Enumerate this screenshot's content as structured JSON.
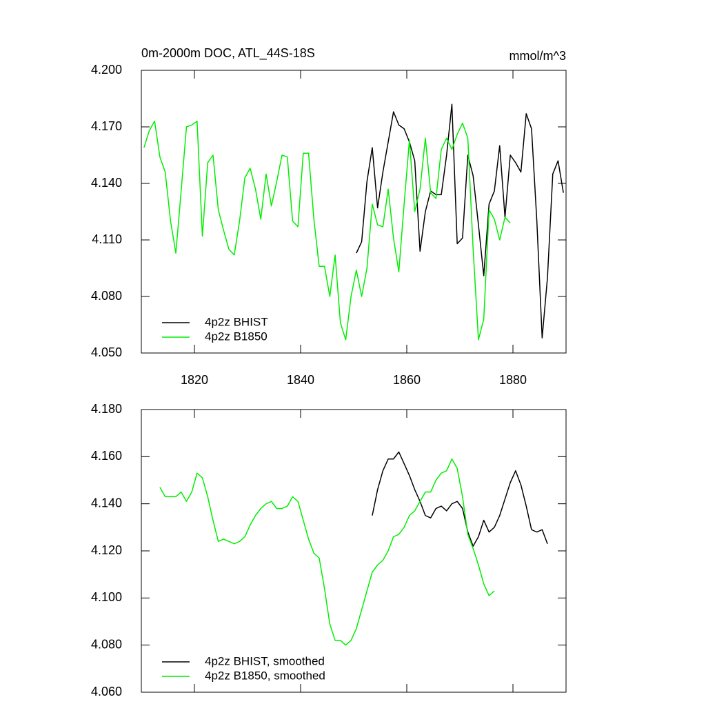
{
  "chart_data": [
    {
      "type": "line",
      "title": "0m-2000m DOC, ATL_44S-18S",
      "units": "mmol/m^3",
      "xlim": [
        1810,
        1890
      ],
      "xticks": [
        1820,
        1840,
        1860,
        1880
      ],
      "xtick_labels": true,
      "ylim": [
        4.05,
        4.2
      ],
      "yticks": [
        {
          "value": 4.05,
          "label": "4.050"
        },
        {
          "value": 4.08,
          "label": "4.080"
        },
        {
          "value": 4.11,
          "label": "4.110"
        },
        {
          "value": 4.14,
          "label": "4.140"
        },
        {
          "value": 4.17,
          "label": "4.170"
        },
        {
          "value": 4.2,
          "label": "4.200"
        }
      ],
      "legend": "lower left",
      "series": [
        {
          "name": "4p2z BHIST",
          "color": "#000000",
          "x": [
            1850.5,
            1851.5,
            1852.5,
            1853.5,
            1854.5,
            1855.5,
            1856.5,
            1857.5,
            1858.5,
            1859.5,
            1860.5,
            1861.5,
            1862.5,
            1863.5,
            1864.5,
            1865.5,
            1866.5,
            1867.5,
            1868.5,
            1869.5,
            1870.5,
            1871.5,
            1872.5,
            1873.5,
            1874.5,
            1875.5,
            1876.5,
            1877.5,
            1878.5,
            1879.5,
            1880.5,
            1881.5,
            1882.5,
            1883.5,
            1884.5,
            1885.5,
            1886.5,
            1887.5,
            1888.5,
            1889.5
          ],
          "values": [
            4.103,
            4.109,
            4.141,
            4.159,
            4.127,
            4.146,
            4.162,
            4.178,
            4.171,
            4.169,
            4.162,
            4.152,
            4.104,
            4.125,
            4.136,
            4.134,
            4.134,
            4.155,
            4.182,
            4.108,
            4.111,
            4.155,
            4.144,
            4.118,
            4.091,
            4.129,
            4.136,
            4.16,
            4.122,
            4.155,
            4.151,
            4.146,
            4.177,
            4.169,
            4.12,
            4.058,
            4.09,
            4.145,
            4.152,
            4.135
          ]
        },
        {
          "name": "4p2z B1850",
          "color": "#00ee00",
          "x": [
            1810.5,
            1811.5,
            1812.5,
            1813.5,
            1814.5,
            1815.5,
            1816.5,
            1817.5,
            1818.5,
            1819.5,
            1820.5,
            1821.5,
            1822.5,
            1823.5,
            1824.5,
            1825.5,
            1826.5,
            1827.5,
            1828.5,
            1829.5,
            1830.5,
            1831.5,
            1832.5,
            1833.5,
            1834.5,
            1835.5,
            1836.5,
            1837.5,
            1838.5,
            1839.5,
            1840.5,
            1841.5,
            1842.5,
            1843.5,
            1844.5,
            1845.5,
            1846.5,
            1847.5,
            1848.5,
            1849.5,
            1850.5,
            1851.5,
            1852.5,
            1853.5,
            1854.5,
            1855.5,
            1856.5,
            1857.5,
            1858.5,
            1859.5,
            1860.5,
            1861.5,
            1862.5,
            1863.5,
            1864.5,
            1865.5,
            1866.5,
            1867.5,
            1868.5,
            1869.5,
            1870.5,
            1871.5,
            1872.5,
            1873.5,
            1874.5,
            1875.5,
            1876.5,
            1877.5,
            1878.5,
            1879.5
          ],
          "values": [
            4.159,
            4.168,
            4.173,
            4.154,
            4.146,
            4.12,
            4.103,
            4.136,
            4.17,
            4.171,
            4.173,
            4.112,
            4.151,
            4.155,
            4.126,
            4.115,
            4.105,
            4.102,
            4.12,
            4.143,
            4.148,
            4.137,
            4.121,
            4.145,
            4.128,
            4.141,
            4.155,
            4.154,
            4.12,
            4.117,
            4.156,
            4.156,
            4.121,
            4.096,
            4.096,
            4.08,
            4.102,
            4.066,
            4.057,
            4.08,
            4.094,
            4.08,
            4.095,
            4.129,
            4.118,
            4.117,
            4.137,
            4.111,
            4.093,
            4.129,
            4.163,
            4.125,
            4.137,
            4.164,
            4.135,
            4.132,
            4.158,
            4.164,
            4.158,
            4.166,
            4.172,
            4.164,
            4.105,
            4.057,
            4.068,
            4.126,
            4.121,
            4.11,
            4.122,
            4.119
          ]
        }
      ]
    },
    {
      "type": "line",
      "xlim": [
        1810,
        1890
      ],
      "xticks": [
        1820,
        1840,
        1860,
        1880
      ],
      "xtick_labels": false,
      "ylim": [
        4.06,
        4.18
      ],
      "yticks": [
        {
          "value": 4.06,
          "label": "4.060"
        },
        {
          "value": 4.08,
          "label": "4.080"
        },
        {
          "value": 4.1,
          "label": "4.100"
        },
        {
          "value": 4.12,
          "label": "4.120"
        },
        {
          "value": 4.14,
          "label": "4.140"
        },
        {
          "value": 4.16,
          "label": "4.160"
        },
        {
          "value": 4.18,
          "label": "4.180"
        }
      ],
      "legend": "lower left",
      "series": [
        {
          "name": "4p2z BHIST, smoothed",
          "color": "#000000",
          "x": [
            1853.5,
            1854.5,
            1855.5,
            1856.5,
            1857.5,
            1858.5,
            1859.5,
            1860.5,
            1861.5,
            1862.5,
            1863.5,
            1864.5,
            1865.5,
            1866.5,
            1867.5,
            1868.5,
            1869.5,
            1870.5,
            1871.5,
            1872.5,
            1873.5,
            1874.5,
            1875.5,
            1876.5,
            1877.5,
            1878.5,
            1879.5,
            1880.5,
            1881.5,
            1882.5,
            1883.5,
            1884.5,
            1885.5,
            1886.5
          ],
          "values": [
            4.135,
            4.146,
            4.154,
            4.159,
            4.159,
            4.162,
            4.157,
            4.152,
            4.146,
            4.141,
            4.135,
            4.134,
            4.138,
            4.139,
            4.137,
            4.14,
            4.141,
            4.138,
            4.128,
            4.122,
            4.126,
            4.133,
            4.128,
            4.13,
            4.135,
            4.142,
            4.149,
            4.154,
            4.148,
            4.139,
            4.129,
            4.128,
            4.129,
            4.123
          ]
        },
        {
          "name": "4p2z B1850, smoothed",
          "color": "#00ee00",
          "x": [
            1813.5,
            1814.5,
            1815.5,
            1816.5,
            1817.5,
            1818.5,
            1819.5,
            1820.5,
            1821.5,
            1822.5,
            1823.5,
            1824.5,
            1825.5,
            1826.5,
            1827.5,
            1828.5,
            1829.5,
            1830.5,
            1831.5,
            1832.5,
            1833.5,
            1834.5,
            1835.5,
            1836.5,
            1837.5,
            1838.5,
            1839.5,
            1840.5,
            1841.5,
            1842.5,
            1843.5,
            1844.5,
            1845.5,
            1846.5,
            1847.5,
            1848.5,
            1849.5,
            1850.5,
            1851.5,
            1852.5,
            1853.5,
            1854.5,
            1855.5,
            1856.5,
            1857.5,
            1858.5,
            1859.5,
            1860.5,
            1861.5,
            1862.5,
            1863.5,
            1864.5,
            1865.5,
            1866.5,
            1867.5,
            1868.5,
            1869.5,
            1870.5,
            1871.5,
            1872.5,
            1873.5,
            1874.5,
            1875.5,
            1876.5
          ],
          "values": [
            4.147,
            4.143,
            4.143,
            4.143,
            4.145,
            4.141,
            4.145,
            4.153,
            4.151,
            4.143,
            4.133,
            4.124,
            4.125,
            4.124,
            4.123,
            4.124,
            4.126,
            4.131,
            4.135,
            4.138,
            4.14,
            4.141,
            4.138,
            4.138,
            4.139,
            4.143,
            4.141,
            4.133,
            4.125,
            4.119,
            4.117,
            4.104,
            4.089,
            4.082,
            4.082,
            4.08,
            4.082,
            4.087,
            4.095,
            4.103,
            4.111,
            4.114,
            4.116,
            4.12,
            4.126,
            4.127,
            4.13,
            4.135,
            4.137,
            4.141,
            4.145,
            4.145,
            4.15,
            4.153,
            4.154,
            4.159,
            4.155,
            4.143,
            4.127,
            4.121,
            4.114,
            4.106,
            4.101,
            4.103
          ]
        }
      ]
    }
  ]
}
